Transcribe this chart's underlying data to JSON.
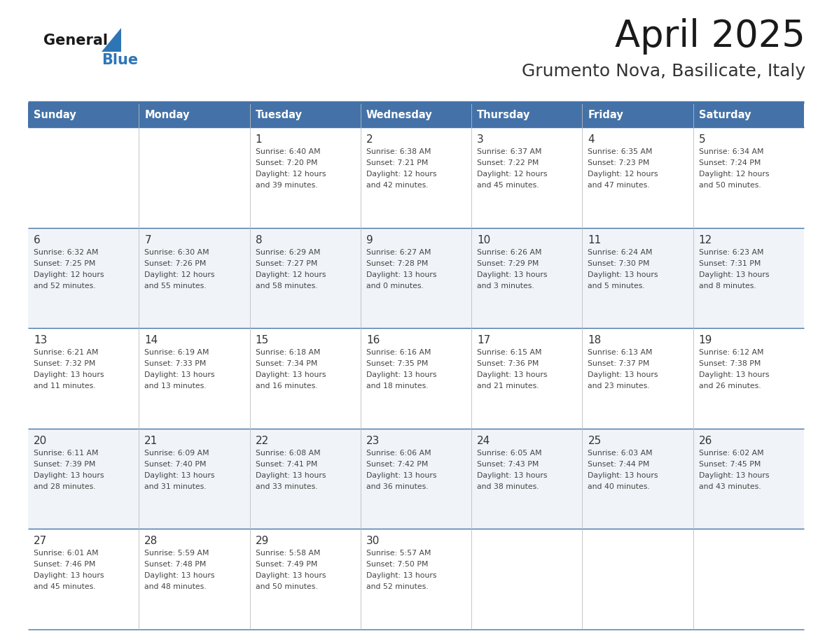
{
  "title": "April 2025",
  "subtitle": "Grumento Nova, Basilicate, Italy",
  "header_bg_color": "#4472A8",
  "header_text_color": "#FFFFFF",
  "cell_bg_colors": [
    "#FFFFFF",
    "#F0F4F8"
  ],
  "grid_line_color": "#4472A8",
  "text_color": "#444444",
  "day_number_color": "#333333",
  "day_names": [
    "Sunday",
    "Monday",
    "Tuesday",
    "Wednesday",
    "Thursday",
    "Friday",
    "Saturday"
  ],
  "calendar_data": [
    [
      {
        "day": "",
        "lines": []
      },
      {
        "day": "",
        "lines": []
      },
      {
        "day": "1",
        "lines": [
          "Sunrise: 6:40 AM",
          "Sunset: 7:20 PM",
          "Daylight: 12 hours",
          "and 39 minutes."
        ]
      },
      {
        "day": "2",
        "lines": [
          "Sunrise: 6:38 AM",
          "Sunset: 7:21 PM",
          "Daylight: 12 hours",
          "and 42 minutes."
        ]
      },
      {
        "day": "3",
        "lines": [
          "Sunrise: 6:37 AM",
          "Sunset: 7:22 PM",
          "Daylight: 12 hours",
          "and 45 minutes."
        ]
      },
      {
        "day": "4",
        "lines": [
          "Sunrise: 6:35 AM",
          "Sunset: 7:23 PM",
          "Daylight: 12 hours",
          "and 47 minutes."
        ]
      },
      {
        "day": "5",
        "lines": [
          "Sunrise: 6:34 AM",
          "Sunset: 7:24 PM",
          "Daylight: 12 hours",
          "and 50 minutes."
        ]
      }
    ],
    [
      {
        "day": "6",
        "lines": [
          "Sunrise: 6:32 AM",
          "Sunset: 7:25 PM",
          "Daylight: 12 hours",
          "and 52 minutes."
        ]
      },
      {
        "day": "7",
        "lines": [
          "Sunrise: 6:30 AM",
          "Sunset: 7:26 PM",
          "Daylight: 12 hours",
          "and 55 minutes."
        ]
      },
      {
        "day": "8",
        "lines": [
          "Sunrise: 6:29 AM",
          "Sunset: 7:27 PM",
          "Daylight: 12 hours",
          "and 58 minutes."
        ]
      },
      {
        "day": "9",
        "lines": [
          "Sunrise: 6:27 AM",
          "Sunset: 7:28 PM",
          "Daylight: 13 hours",
          "and 0 minutes."
        ]
      },
      {
        "day": "10",
        "lines": [
          "Sunrise: 6:26 AM",
          "Sunset: 7:29 PM",
          "Daylight: 13 hours",
          "and 3 minutes."
        ]
      },
      {
        "day": "11",
        "lines": [
          "Sunrise: 6:24 AM",
          "Sunset: 7:30 PM",
          "Daylight: 13 hours",
          "and 5 minutes."
        ]
      },
      {
        "day": "12",
        "lines": [
          "Sunrise: 6:23 AM",
          "Sunset: 7:31 PM",
          "Daylight: 13 hours",
          "and 8 minutes."
        ]
      }
    ],
    [
      {
        "day": "13",
        "lines": [
          "Sunrise: 6:21 AM",
          "Sunset: 7:32 PM",
          "Daylight: 13 hours",
          "and 11 minutes."
        ]
      },
      {
        "day": "14",
        "lines": [
          "Sunrise: 6:19 AM",
          "Sunset: 7:33 PM",
          "Daylight: 13 hours",
          "and 13 minutes."
        ]
      },
      {
        "day": "15",
        "lines": [
          "Sunrise: 6:18 AM",
          "Sunset: 7:34 PM",
          "Daylight: 13 hours",
          "and 16 minutes."
        ]
      },
      {
        "day": "16",
        "lines": [
          "Sunrise: 6:16 AM",
          "Sunset: 7:35 PM",
          "Daylight: 13 hours",
          "and 18 minutes."
        ]
      },
      {
        "day": "17",
        "lines": [
          "Sunrise: 6:15 AM",
          "Sunset: 7:36 PM",
          "Daylight: 13 hours",
          "and 21 minutes."
        ]
      },
      {
        "day": "18",
        "lines": [
          "Sunrise: 6:13 AM",
          "Sunset: 7:37 PM",
          "Daylight: 13 hours",
          "and 23 minutes."
        ]
      },
      {
        "day": "19",
        "lines": [
          "Sunrise: 6:12 AM",
          "Sunset: 7:38 PM",
          "Daylight: 13 hours",
          "and 26 minutes."
        ]
      }
    ],
    [
      {
        "day": "20",
        "lines": [
          "Sunrise: 6:11 AM",
          "Sunset: 7:39 PM",
          "Daylight: 13 hours",
          "and 28 minutes."
        ]
      },
      {
        "day": "21",
        "lines": [
          "Sunrise: 6:09 AM",
          "Sunset: 7:40 PM",
          "Daylight: 13 hours",
          "and 31 minutes."
        ]
      },
      {
        "day": "22",
        "lines": [
          "Sunrise: 6:08 AM",
          "Sunset: 7:41 PM",
          "Daylight: 13 hours",
          "and 33 minutes."
        ]
      },
      {
        "day": "23",
        "lines": [
          "Sunrise: 6:06 AM",
          "Sunset: 7:42 PM",
          "Daylight: 13 hours",
          "and 36 minutes."
        ]
      },
      {
        "day": "24",
        "lines": [
          "Sunrise: 6:05 AM",
          "Sunset: 7:43 PM",
          "Daylight: 13 hours",
          "and 38 minutes."
        ]
      },
      {
        "day": "25",
        "lines": [
          "Sunrise: 6:03 AM",
          "Sunset: 7:44 PM",
          "Daylight: 13 hours",
          "and 40 minutes."
        ]
      },
      {
        "day": "26",
        "lines": [
          "Sunrise: 6:02 AM",
          "Sunset: 7:45 PM",
          "Daylight: 13 hours",
          "and 43 minutes."
        ]
      }
    ],
    [
      {
        "day": "27",
        "lines": [
          "Sunrise: 6:01 AM",
          "Sunset: 7:46 PM",
          "Daylight: 13 hours",
          "and 45 minutes."
        ]
      },
      {
        "day": "28",
        "lines": [
          "Sunrise: 5:59 AM",
          "Sunset: 7:48 PM",
          "Daylight: 13 hours",
          "and 48 minutes."
        ]
      },
      {
        "day": "29",
        "lines": [
          "Sunrise: 5:58 AM",
          "Sunset: 7:49 PM",
          "Daylight: 13 hours",
          "and 50 minutes."
        ]
      },
      {
        "day": "30",
        "lines": [
          "Sunrise: 5:57 AM",
          "Sunset: 7:50 PM",
          "Daylight: 13 hours",
          "and 52 minutes."
        ]
      },
      {
        "day": "",
        "lines": []
      },
      {
        "day": "",
        "lines": []
      },
      {
        "day": "",
        "lines": []
      }
    ]
  ],
  "fig_width": 11.88,
  "fig_height": 9.18,
  "dpi": 100
}
